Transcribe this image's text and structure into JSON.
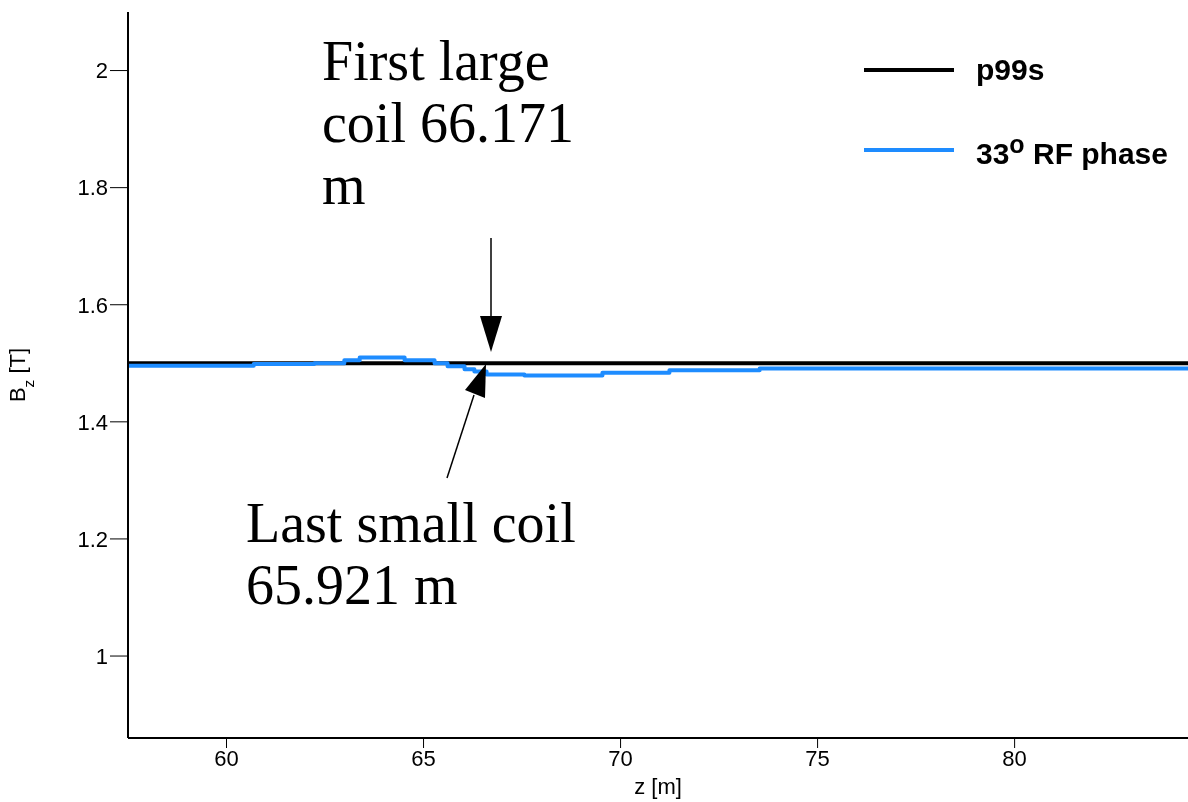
{
  "chart_data": {
    "type": "line",
    "xlabel": "z [m]",
    "ylabel": "B$_{z}$ [T]",
    "xlim": [
      57.5,
      84.4
    ],
    "ylim": [
      0.86,
      2.1
    ],
    "xticks": [
      60,
      65,
      70,
      75,
      80
    ],
    "yticks": [
      1,
      1.2,
      1.4,
      1.6,
      1.8,
      2
    ],
    "grid": false,
    "legend": "top right",
    "marker": "none",
    "line_style": "solid",
    "series": [
      {
        "name": "p99s",
        "color": "#000000",
        "x": [
          57.5,
          84.4
        ],
        "values": [
          1.5,
          1.5
        ]
      },
      {
        "name": "33$^{o}$ RF phase",
        "color": "#1e8cff",
        "type": "step",
        "x": [
          57.5,
          60.69,
          62.23,
          62.99,
          63.38,
          64.52,
          65.28,
          65.61,
          66.04,
          66.29,
          66.6,
          67.56,
          69.54,
          71.24,
          73.53,
          84.4
        ],
        "values": [
          1.496,
          1.499,
          1.5,
          1.505,
          1.51,
          1.505,
          1.5,
          1.495,
          1.49,
          1.486,
          1.481,
          1.479,
          1.484,
          1.488,
          1.491,
          1.491
        ]
      }
    ],
    "annotations": [
      "First large coil 66.171 m",
      "Last small coil 65.921 m"
    ]
  }
}
